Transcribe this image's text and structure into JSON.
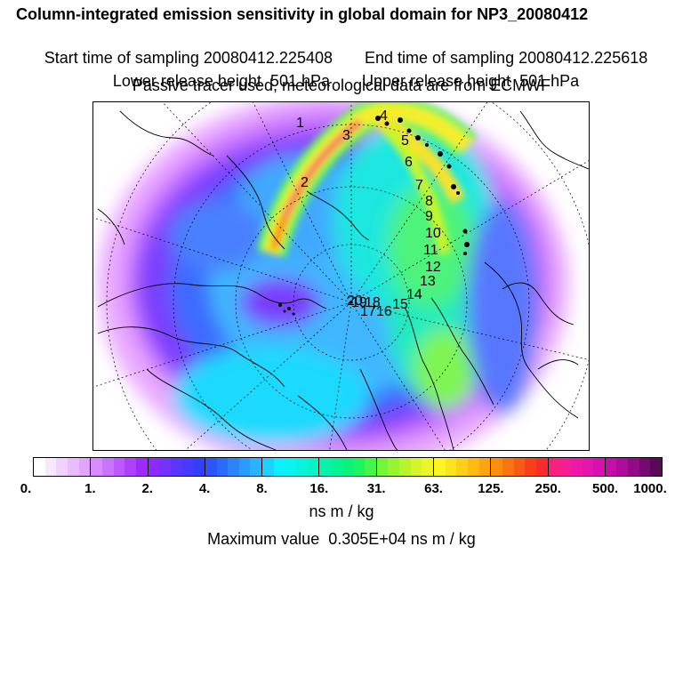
{
  "header": {
    "title": "Column-integrated emission sensitivity in global domain for NP3_20080412",
    "start_label": "Start time of sampling 20080412.225408",
    "end_label": "End time of sampling 20080412.225618",
    "lower_label": "Lower release height  501 hPa",
    "upper_label": "Upper release height  501 hPa",
    "tracer_note": "Passive tracer used, meteorological data are from ECMWF"
  },
  "map": {
    "projection": "polar stereographic (north)",
    "trajectory_labels": [
      "1",
      "2",
      "3",
      "4",
      "5",
      "6",
      "7",
      "8",
      "9",
      "10",
      "11",
      "12",
      "13",
      "14",
      "15",
      "16",
      "17",
      "18",
      "19",
      "20"
    ]
  },
  "colorbar": {
    "tick_labels": [
      "0.",
      "1.",
      "2.",
      "4.",
      "8.",
      "16.",
      "31.",
      "63.",
      "125.",
      "250.",
      "500.",
      "1000."
    ],
    "units": "ns m / kg",
    "colors": [
      "#ffffff",
      "#f8e8ff",
      "#f1d2ff",
      "#e9bbff",
      "#e1a4ff",
      "#d68cff",
      "#c973ff",
      "#bc5aff",
      "#ae41ff",
      "#9f29ff",
      "#8b2bff",
      "#7431ff",
      "#5b36ff",
      "#453bff",
      "#333fff",
      "#2a55ff",
      "#2a6cff",
      "#2a84ff",
      "#2a9cff",
      "#2ab3ff",
      "#1ed0ff",
      "#0ef0ff",
      "#0af2f2",
      "#09f3dc",
      "#08f3c4",
      "#07f3ac",
      "#06f394",
      "#08f27c",
      "#1cf560",
      "#44f64a",
      "#72f63a",
      "#96f52e",
      "#b7f52a",
      "#d3f52a",
      "#ecf52a",
      "#fdf425",
      "#fde21e",
      "#fdcf18",
      "#fdbb14",
      "#fca511",
      "#fc8e0f",
      "#fb740f",
      "#fa5a12",
      "#f93f18",
      "#f82c2c",
      "#f8207c",
      "#f81c94",
      "#f018a6",
      "#e414ae",
      "#d810b2",
      "#c40ea8",
      "#ae0d9c",
      "#920b86",
      "#760a70",
      "#5a0858"
    ]
  },
  "footer": {
    "max_label": "Maximum value  0.305E+04 ns m / kg"
  }
}
